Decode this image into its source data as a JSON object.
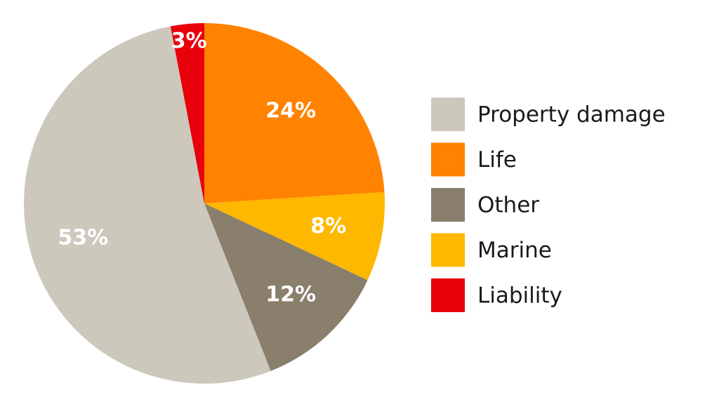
{
  "chart_data": {
    "type": "pie",
    "categories": [
      "Life",
      "Marine",
      "Other",
      "Property damage",
      "Liability"
    ],
    "values": [
      24,
      8,
      12,
      53,
      3
    ],
    "value_labels": [
      "24%",
      "8%",
      "12%",
      "53%",
      "3%"
    ],
    "colors": [
      "#ff8200",
      "#ffb800",
      "#8a7e6c",
      "#cdc8bc",
      "#e8000b"
    ],
    "legend": "right"
  }
}
